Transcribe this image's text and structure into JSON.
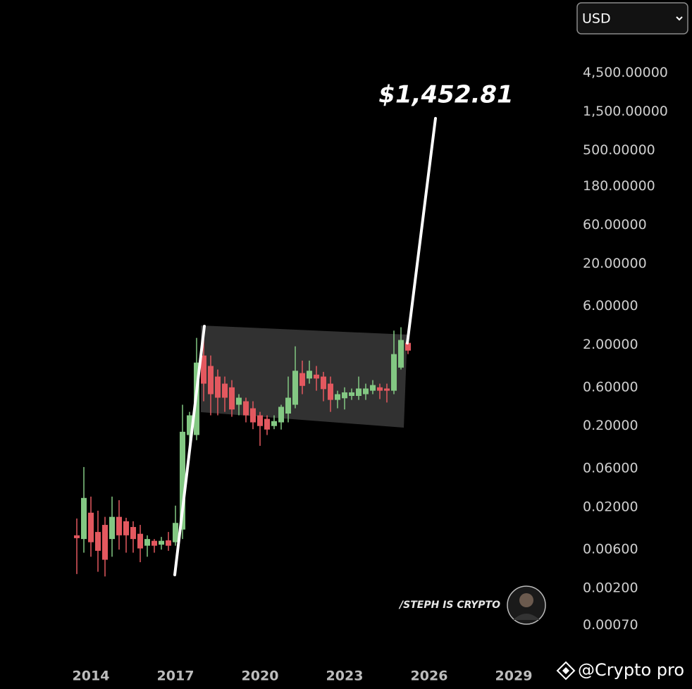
{
  "currency_select": "USD",
  "credit": "@Crypto pro",
  "chart_data": {
    "type": "candlestick",
    "annotation": "$1,452.81",
    "watermark": "/STEPH IS CRYPTO",
    "log_scale": true,
    "up_color": "#83c883",
    "down_color": "#e3585f",
    "x": [
      2013.5,
      2013.75,
      2014,
      2014.25,
      2014.5,
      2014.75,
      2015,
      2015.25,
      2015.5,
      2015.75,
      2016,
      2016.25,
      2016.5,
      2016.75,
      2017,
      2017.25,
      2017.5,
      2017.75,
      2018,
      2018.25,
      2018.5,
      2018.75,
      2019,
      2019.25,
      2019.5,
      2019.75,
      2020,
      2020.25,
      2020.5,
      2020.75,
      2021,
      2021.25,
      2021.5,
      2021.75,
      2022,
      2022.25,
      2022.5,
      2022.75,
      2023,
      2023.25,
      2023.5,
      2023.75,
      2024,
      2024.25,
      2024.5,
      2024.75,
      2025,
      2025.25
    ],
    "open": [
      0.009,
      0.0081,
      0.0171,
      0.0099,
      0.0121,
      0.0081,
      0.0152,
      0.0134,
      0.0114,
      0.0094,
      0.0067,
      0.0077,
      0.0069,
      0.0078,
      0.0074,
      0.0106,
      0.155,
      0.155,
      1.48,
      1.1,
      0.814,
      0.666,
      0.6,
      0.366,
      0.404,
      0.331,
      0.271,
      0.245,
      0.2,
      0.222,
      0.285,
      0.366,
      0.899,
      0.77,
      0.86,
      0.814,
      0.666,
      0.42,
      0.44,
      0.47,
      0.47,
      0.494,
      0.545,
      0.6,
      0.58,
      0.545,
      1.05,
      2.12
    ],
    "high": [
      0.0145,
      0.0625,
      0.027,
      0.0181,
      0.0152,
      0.027,
      0.0244,
      0.0148,
      0.0134,
      0.0121,
      0.009,
      0.0081,
      0.0086,
      0.0099,
      0.0209,
      0.366,
      0.299,
      2.44,
      2.44,
      1.48,
      0.994,
      0.814,
      0.736,
      0.494,
      0.447,
      0.404,
      0.299,
      0.271,
      0.271,
      0.366,
      0.814,
      1.92,
      1.28,
      1.28,
      1.1,
      0.93,
      0.814,
      0.545,
      0.6,
      0.58,
      0.814,
      0.666,
      0.736,
      0.666,
      0.666,
      3.0,
      3.3,
      2.44
    ],
    "low": [
      0.003,
      0.0055,
      0.0049,
      0.0032,
      0.0028,
      0.0049,
      0.006,
      0.0055,
      0.0055,
      0.0042,
      0.0049,
      0.0055,
      0.006,
      0.0058,
      0.0067,
      0.0081,
      0.093,
      0.134,
      0.404,
      0.271,
      0.271,
      0.299,
      0.26,
      0.271,
      0.222,
      0.183,
      0.114,
      0.155,
      0.183,
      0.181,
      0.222,
      0.331,
      0.494,
      0.666,
      0.545,
      0.404,
      0.299,
      0.331,
      0.32,
      0.42,
      0.42,
      0.42,
      0.494,
      0.43,
      0.39,
      0.494,
      0.994,
      1.54
    ],
    "close": [
      0.0083,
      0.026,
      0.0074,
      0.0058,
      0.0045,
      0.0152,
      0.009,
      0.009,
      0.0081,
      0.0062,
      0.0081,
      0.0067,
      0.0077,
      0.0067,
      0.0128,
      0.17,
      0.271,
      1.21,
      0.666,
      0.494,
      0.447,
      0.447,
      0.32,
      0.447,
      0.271,
      0.222,
      0.2,
      0.181,
      0.23,
      0.345,
      0.447,
      0.96,
      0.625,
      0.96,
      0.77,
      0.57,
      0.42,
      0.494,
      0.52,
      0.52,
      0.58,
      0.58,
      0.64,
      0.545,
      0.545,
      1.54,
      2.3,
      1.7
    ],
    "xlim": [
      2011,
      2031
    ],
    "xticks": [
      2014,
      2017,
      2020,
      2023,
      2026,
      2029
    ],
    "ylim": [
      0.0003,
      16000
    ],
    "yticks": [
      {
        "value": 4500,
        "label": "4,500.00000"
      },
      {
        "value": 1500,
        "label": "1,500.00000"
      },
      {
        "value": 500,
        "label": "500.00000"
      },
      {
        "value": 180,
        "label": "180.00000"
      },
      {
        "value": 60,
        "label": "60.00000"
      },
      {
        "value": 20,
        "label": "20.00000"
      },
      {
        "value": 6,
        "label": "6.00000"
      },
      {
        "value": 2,
        "label": "2.00000"
      },
      {
        "value": 0.6,
        "label": "0.60000"
      },
      {
        "value": 0.2,
        "label": "0.20000"
      },
      {
        "value": 0.06,
        "label": "0.06000"
      },
      {
        "value": 0.02,
        "label": "0.02000"
      },
      {
        "value": 0.006,
        "label": "0.00600"
      },
      {
        "value": 0.002,
        "label": "0.00200"
      },
      {
        "value": 0.0007,
        "label": "0.00070"
      }
    ]
  }
}
